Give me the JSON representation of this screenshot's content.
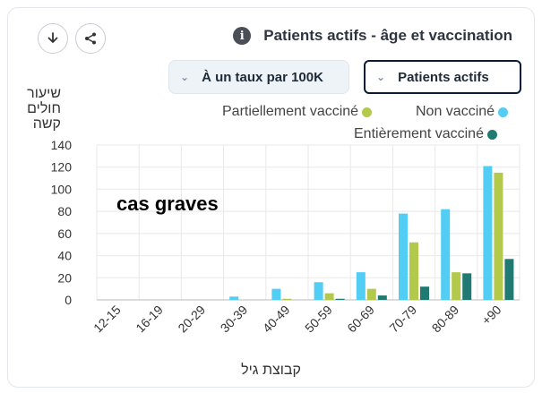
{
  "header": {
    "title": "Patients actifs - âge et vaccination",
    "download_icon": "download-icon",
    "share_icon": "share-icon",
    "info_icon": "info-icon"
  },
  "filters": {
    "rate_select": "À un taux par 100K",
    "metric_select": "Patients actifs"
  },
  "colors": {
    "unvaccinated": "#52cdf4",
    "partial": "#b3c94b",
    "full": "#217a72"
  },
  "chart_data": {
    "type": "bar",
    "ylabel": "שיעור חולים קשה",
    "xlabel": "קבוצת גיל",
    "ylim": [
      0,
      140
    ],
    "yticks": [
      0,
      20,
      40,
      60,
      80,
      100,
      120,
      140
    ],
    "annotation": "cas graves",
    "grid": true,
    "legend_placement": "top-right",
    "categories": [
      "12-15",
      "16-19",
      "20-29",
      "30-39",
      "40-49",
      "50-59",
      "60-69",
      "70-79",
      "80-89",
      "+90"
    ],
    "series": [
      {
        "name": "Non vacciné",
        "values": [
          0,
          0,
          0,
          3,
          10,
          16,
          25,
          78,
          82,
          121
        ]
      },
      {
        "name": "Partiellement vacciné",
        "values": [
          0,
          0,
          0,
          0,
          1,
          6,
          10,
          52,
          25,
          115
        ]
      },
      {
        "name": "Entièrement vacciné",
        "values": [
          0,
          0,
          0,
          0,
          0,
          1,
          4,
          12,
          24,
          37
        ]
      }
    ]
  }
}
